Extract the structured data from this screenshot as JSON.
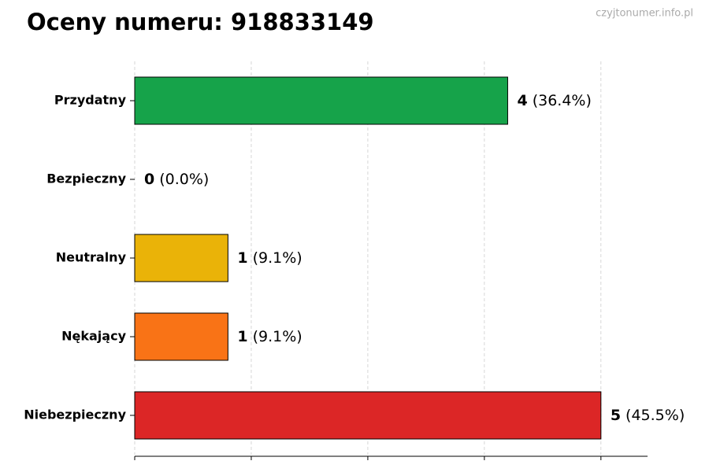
{
  "chart_data": {
    "type": "barh",
    "title": "Oceny numeru: 918833149",
    "watermark": "czyjtonumer.info.pl",
    "categories": [
      "Przydatny",
      "Bezpieczny",
      "Neutralny",
      "Nękający",
      "Niebezpieczny"
    ],
    "values": [
      4,
      0,
      1,
      1,
      5
    ],
    "percent_labels": [
      "(36.4%)",
      "(0.0%)",
      "(9.1%)",
      "(9.1%)",
      "(45.5%)"
    ],
    "colors": [
      "#16a34a",
      "#2563eb",
      "#eab308",
      "#f97316",
      "#dc2626"
    ],
    "xlim": [
      0,
      5.5
    ],
    "xticks": [
      0,
      1.25,
      2.5,
      3.75,
      5
    ],
    "grid": true
  }
}
